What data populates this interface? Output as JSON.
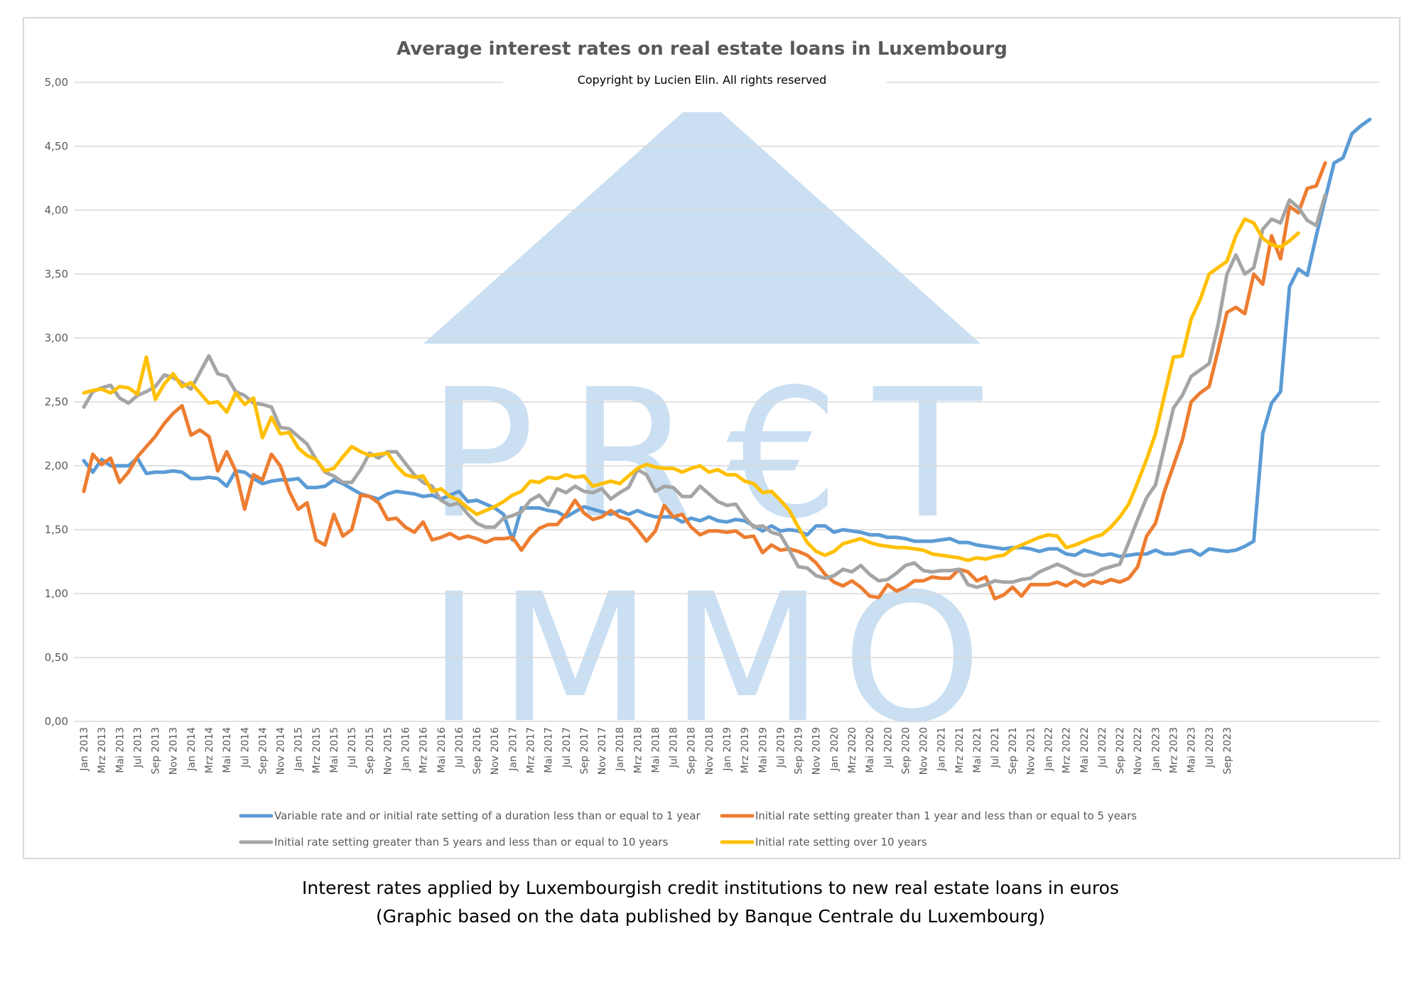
{
  "caption": {
    "line1": "Interest rates applied by Luxembourgish credit institutions to new real estate loans in euros",
    "line2": "(Graphic based on the data published by Banque Centrale du Luxembourg)"
  },
  "watermark": {
    "line1": "PR€T",
    "line2": "IMMO",
    "color": "#9fc5e8"
  },
  "chart_data": {
    "type": "line",
    "title": "Average interest rates on real estate loans in Luxembourg",
    "subtitle": "Copyright by Lucien Elin. All rights reserved",
    "xlabel": "",
    "ylabel": "",
    "ylim": [
      0,
      5
    ],
    "y_ticks": [
      "0,00",
      "0,50",
      "1,00",
      "1,50",
      "2,00",
      "2,50",
      "3,00",
      "3,50",
      "4,00",
      "4,50",
      "5,00"
    ],
    "grid": true,
    "legend_position": "bottom",
    "x_tick_labels": [
      "Jan 2013",
      "Mrz 2013",
      "Mai 2013",
      "Jul 2013",
      "Sep 2013",
      "Nov 2013",
      "Jan 2014",
      "Mrz 2014",
      "Mai 2014",
      "Jul 2014",
      "Sep 2014",
      "Nov 2014",
      "Jan 2015",
      "Mrz 2015",
      "Mai 2015",
      "Jul 2015",
      "Sep 2015",
      "Nov 2015",
      "Jan 2016",
      "Mrz 2016",
      "Mai 2016",
      "Jul 2016",
      "Sep 2016",
      "Nov 2016",
      "Jan 2017",
      "Mrz 2017",
      "Mai 2017",
      "Jul 2017",
      "Sep 2017",
      "Nov 2017",
      "Jan 2018",
      "Mrz 2018",
      "Mai 2018",
      "Jul 2018",
      "Sep 2018",
      "Nov 2018",
      "Jan 2019",
      "Mrz 2019",
      "Mai 2019",
      "Jul 2019",
      "Sep 2019",
      "Nov 2019",
      "Jan 2020",
      "Mrz 2020",
      "Mai 2020",
      "Jul 2020",
      "Sep 2020",
      "Nov 2020",
      "Jan 2021",
      "Mrz 2021",
      "Mai 2021",
      "Jul 2021",
      "Sep 2021",
      "Nov 2021",
      "Jan 2022",
      "Mrz 2022",
      "Mai 2022",
      "Jul 2022",
      "Sep 2022",
      "Nov 2022",
      "Jan 2023",
      "Mrz 2023",
      "Mai 2023",
      "Jul 2023",
      "Sep 2023"
    ],
    "series": [
      {
        "name": "Variable rate and or initial rate setting of a duration less than or equal to 1 year",
        "color": "#5b9bd5",
        "values": [
          2.04,
          1.95,
          2.05,
          2.0,
          2.0,
          2.0,
          2.06,
          1.94,
          1.95,
          1.95,
          1.96,
          1.95,
          1.9,
          1.9,
          1.91,
          1.9,
          1.84,
          1.96,
          1.95,
          1.9,
          1.86,
          1.88,
          1.89,
          1.89,
          1.9,
          1.83,
          1.83,
          1.84,
          1.89,
          1.86,
          1.82,
          1.78,
          1.76,
          1.74,
          1.78,
          1.8,
          1.79,
          1.78,
          1.76,
          1.77,
          1.74,
          1.77,
          1.8,
          1.72,
          1.73,
          1.7,
          1.67,
          1.62,
          1.42,
          1.67,
          1.67,
          1.67,
          1.65,
          1.64,
          1.6,
          1.64,
          1.68,
          1.66,
          1.64,
          1.62,
          1.65,
          1.62,
          1.65,
          1.62,
          1.6,
          1.6,
          1.6,
          1.56,
          1.59,
          1.57,
          1.6,
          1.57,
          1.56,
          1.58,
          1.57,
          1.53,
          1.49,
          1.53,
          1.49,
          1.5,
          1.49,
          1.46,
          1.53,
          1.53,
          1.48,
          1.5,
          1.49,
          1.48,
          1.46,
          1.46,
          1.44,
          1.44,
          1.43,
          1.41,
          1.41,
          1.41,
          1.42,
          1.43,
          1.4,
          1.4,
          1.38,
          1.37,
          1.36,
          1.35,
          1.36,
          1.36,
          1.35,
          1.33,
          1.35,
          1.35,
          1.31,
          1.3,
          1.34,
          1.32,
          1.3,
          1.31,
          1.29,
          1.3,
          1.31,
          1.31,
          1.34,
          1.31,
          1.31,
          1.33,
          1.34,
          1.3,
          1.35,
          1.34,
          1.33,
          1.34,
          1.37,
          1.41,
          2.25,
          2.49,
          2.58,
          3.4,
          3.54,
          3.49,
          3.8,
          4.09,
          4.37,
          4.41,
          4.6,
          4.66,
          4.71
        ]
      },
      {
        "name": "Initial rate setting greater than 1 year and less than or equal to 5 years",
        "color": "#ed7d31",
        "values": [
          1.8,
          2.09,
          2.01,
          2.06,
          1.87,
          1.95,
          2.07,
          2.15,
          2.23,
          2.33,
          2.41,
          2.47,
          2.24,
          2.28,
          2.23,
          1.96,
          2.11,
          1.96,
          1.66,
          1.93,
          1.89,
          2.09,
          2.0,
          1.8,
          1.66,
          1.71,
          1.42,
          1.38,
          1.62,
          1.45,
          1.5,
          1.77,
          1.76,
          1.71,
          1.58,
          1.59,
          1.52,
          1.48,
          1.56,
          1.42,
          1.44,
          1.47,
          1.43,
          1.45,
          1.43,
          1.4,
          1.43,
          1.43,
          1.44,
          1.34,
          1.44,
          1.51,
          1.54,
          1.54,
          1.62,
          1.73,
          1.63,
          1.58,
          1.6,
          1.65,
          1.6,
          1.58,
          1.5,
          1.41,
          1.49,
          1.69,
          1.6,
          1.62,
          1.52,
          1.46,
          1.49,
          1.49,
          1.48,
          1.49,
          1.44,
          1.45,
          1.32,
          1.38,
          1.34,
          1.35,
          1.33,
          1.3,
          1.24,
          1.15,
          1.09,
          1.06,
          1.1,
          1.05,
          0.98,
          0.97,
          1.07,
          1.02,
          1.05,
          1.1,
          1.1,
          1.13,
          1.12,
          1.12,
          1.19,
          1.17,
          1.1,
          1.13,
          0.96,
          0.99,
          1.05,
          0.98,
          1.07,
          1.07,
          1.07,
          1.09,
          1.06,
          1.1,
          1.06,
          1.1,
          1.08,
          1.11,
          1.09,
          1.12,
          1.21,
          1.45,
          1.55,
          1.8,
          2.0,
          2.2,
          2.5,
          2.57,
          2.62,
          2.9,
          3.2,
          3.24,
          3.19,
          3.5,
          3.42,
          3.8,
          3.62,
          4.03,
          3.98,
          4.17,
          4.19,
          4.37
        ]
      },
      {
        "name": "Initial rate setting greater than 5 years and less than or equal to 10 years",
        "color": "#a5a5a5",
        "values": [
          2.46,
          2.58,
          2.61,
          2.63,
          2.53,
          2.49,
          2.55,
          2.58,
          2.62,
          2.71,
          2.69,
          2.65,
          2.6,
          2.73,
          2.86,
          2.72,
          2.7,
          2.58,
          2.55,
          2.49,
          2.48,
          2.46,
          2.3,
          2.29,
          2.23,
          2.17,
          2.05,
          1.95,
          1.92,
          1.87,
          1.87,
          1.97,
          2.1,
          2.06,
          2.11,
          2.11,
          2.02,
          1.93,
          1.87,
          1.84,
          1.73,
          1.69,
          1.71,
          1.62,
          1.55,
          1.52,
          1.52,
          1.59,
          1.61,
          1.64,
          1.73,
          1.77,
          1.69,
          1.82,
          1.79,
          1.84,
          1.8,
          1.79,
          1.82,
          1.74,
          1.79,
          1.83,
          1.97,
          1.93,
          1.8,
          1.84,
          1.83,
          1.76,
          1.76,
          1.84,
          1.78,
          1.72,
          1.69,
          1.7,
          1.6,
          1.52,
          1.53,
          1.48,
          1.46,
          1.34,
          1.21,
          1.2,
          1.14,
          1.12,
          1.14,
          1.19,
          1.17,
          1.22,
          1.15,
          1.1,
          1.11,
          1.16,
          1.22,
          1.24,
          1.18,
          1.17,
          1.18,
          1.18,
          1.19,
          1.07,
          1.05,
          1.07,
          1.1,
          1.09,
          1.09,
          1.11,
          1.12,
          1.17,
          1.2,
          1.23,
          1.2,
          1.16,
          1.14,
          1.15,
          1.19,
          1.21,
          1.23,
          1.4,
          1.58,
          1.75,
          1.85,
          2.15,
          2.45,
          2.55,
          2.7,
          2.75,
          2.8,
          3.1,
          3.5,
          3.65,
          3.5,
          3.55,
          3.85,
          3.93,
          3.9,
          4.08,
          4.02,
          3.92,
          3.88,
          4.12
        ]
      },
      {
        "name": "Initial rate setting over 10 years",
        "color": "#ffc000",
        "values": [
          2.57,
          2.59,
          2.6,
          2.57,
          2.62,
          2.61,
          2.56,
          2.85,
          2.52,
          2.64,
          2.72,
          2.62,
          2.65,
          2.57,
          2.49,
          2.5,
          2.42,
          2.57,
          2.48,
          2.53,
          2.22,
          2.38,
          2.25,
          2.26,
          2.14,
          2.08,
          2.05,
          1.96,
          1.98,
          2.07,
          2.15,
          2.11,
          2.08,
          2.09,
          2.1,
          2.0,
          1.93,
          1.91,
          1.92,
          1.8,
          1.82,
          1.76,
          1.73,
          1.67,
          1.62,
          1.65,
          1.68,
          1.72,
          1.77,
          1.8,
          1.88,
          1.87,
          1.91,
          1.9,
          1.93,
          1.91,
          1.92,
          1.84,
          1.86,
          1.88,
          1.86,
          1.92,
          1.98,
          2.01,
          1.99,
          1.98,
          1.98,
          1.95,
          1.98,
          2.0,
          1.95,
          1.97,
          1.93,
          1.93,
          1.88,
          1.86,
          1.79,
          1.8,
          1.73,
          1.65,
          1.52,
          1.4,
          1.33,
          1.3,
          1.33,
          1.39,
          1.41,
          1.43,
          1.4,
          1.38,
          1.37,
          1.36,
          1.36,
          1.35,
          1.34,
          1.31,
          1.3,
          1.29,
          1.28,
          1.26,
          1.28,
          1.27,
          1.29,
          1.3,
          1.35,
          1.38,
          1.41,
          1.44,
          1.46,
          1.45,
          1.36,
          1.38,
          1.41,
          1.44,
          1.46,
          1.52,
          1.6,
          1.7,
          1.87,
          2.05,
          2.25,
          2.55,
          2.85,
          2.86,
          3.15,
          3.3,
          3.5,
          3.55,
          3.6,
          3.8,
          3.93,
          3.9,
          3.78,
          3.73,
          3.71,
          3.76,
          3.82
        ]
      }
    ]
  }
}
